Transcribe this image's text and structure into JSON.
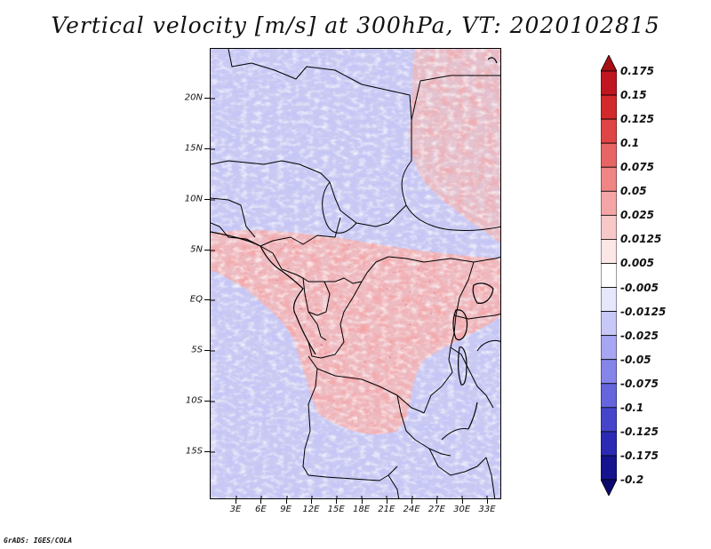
{
  "title": "Vertical velocity [m/s] at 300hPa, VT: 2020102815",
  "credit": "GrADS: IGES/COLA",
  "lat_labels": [
    "20N",
    "15N",
    "10N",
    "5N",
    "EQ",
    "5S",
    "10S",
    "15S"
  ],
  "lon_labels": [
    "3E",
    "6E",
    "9E",
    "12E",
    "15E",
    "18E",
    "21E",
    "24E",
    "27E",
    "30E",
    "33E"
  ],
  "colorbar": {
    "labels": [
      "0.175",
      "0.15",
      "0.125",
      "0.1",
      "0.075",
      "0.05",
      "0.025",
      "0.0125",
      "0.005",
      "-0.005",
      "-0.0125",
      "-0.025",
      "-0.05",
      "-0.075",
      "-0.1",
      "-0.125",
      "-0.175",
      "-0.2"
    ],
    "colors": [
      "#a50f15",
      "#c0161f",
      "#d22a2a",
      "#e04545",
      "#e86565",
      "#ef8585",
      "#f4a6a6",
      "#f8c8c8",
      "#fce6e6",
      "#ffffff",
      "#e6e6fc",
      "#c8c8f8",
      "#a6a6f2",
      "#8585ea",
      "#6565dd",
      "#4545cc",
      "#2a2ab5",
      "#14148f",
      "#0a0a6e"
    ]
  },
  "map": {
    "field": "vertical velocity",
    "level": "300hPa",
    "valid_time": "2020102815",
    "lat_range": [
      "19S",
      "24N"
    ],
    "lon_range": [
      "0E",
      "35E"
    ]
  }
}
